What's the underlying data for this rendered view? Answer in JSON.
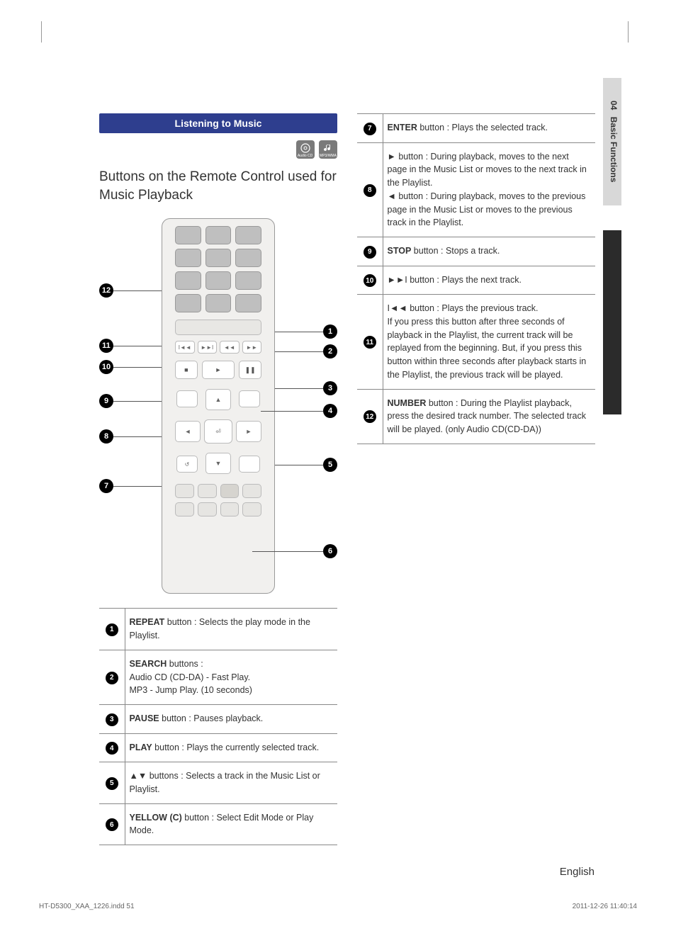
{
  "sideTab": {
    "chapter": "04",
    "title": "Basic Functions"
  },
  "sectionBar": "Listening to Music",
  "mediaIcons": [
    {
      "name": "audio-cd-icon",
      "label": "Audio CD"
    },
    {
      "name": "mp3-icon",
      "label": "MP3/WMA"
    }
  ],
  "heading": "Buttons on the Remote Control used for Music Playback",
  "footer": {
    "lang": "English"
  },
  "printLine": {
    "file": "HT-D5300_XAA_1226.indd   51",
    "date": "2011-12-26   11:40:14"
  },
  "callouts": [
    "1",
    "2",
    "3",
    "4",
    "5",
    "6",
    "7",
    "8",
    "9",
    "10",
    "11",
    "12"
  ],
  "tableLeft": [
    {
      "n": "1",
      "bold": "REPEAT",
      "rest": " button : Selects the play mode in the Playlist."
    },
    {
      "n": "2",
      "bold": "SEARCH",
      "rest": " buttons :\nAudio CD (CD-DA) - Fast Play.\nMP3 - Jump Play. (10 seconds)"
    },
    {
      "n": "3",
      "bold": "PAUSE",
      "rest": " button : Pauses playback."
    },
    {
      "n": "4",
      "bold": "PLAY",
      "rest": " button : Plays the currently selected track."
    },
    {
      "n": "5",
      "bold": "▲▼",
      "rest": " buttons : Selects a track in the Music List or Playlist."
    },
    {
      "n": "6",
      "bold": "YELLOW (C)",
      "rest": " button : Select Edit Mode or Play Mode."
    }
  ],
  "tableRight": [
    {
      "n": "7",
      "bold": "ENTER",
      "rest": " button : Plays the selected track."
    },
    {
      "n": "8",
      "bold": "",
      "rest": "► button : During playback, moves to the next page in the Music List or moves to the next track in the Playlist.\n◄ button : During playback, moves to the previous page in the Music List or moves to the previous track in the Playlist."
    },
    {
      "n": "9",
      "bold": "STOP",
      "rest": " button : Stops a track."
    },
    {
      "n": "10",
      "bold": "",
      "rest": "►►I button : Plays the next track."
    },
    {
      "n": "11",
      "bold": "",
      "rest": "I◄◄ button : Plays the previous track.\nIf you press this button after three seconds of playback in the Playlist, the current track will be replayed from the beginning. But, if you press this button within three seconds after playback starts in the Playlist, the previous track will be played."
    },
    {
      "n": "12",
      "bold": "NUMBER",
      "rest": " button : During the Playlist playback, press the desired track number. The selected track will be played. (only Audio CD(CD-DA))"
    }
  ],
  "colors": {
    "sectionBar": "#2e3e8e",
    "sideTab": "#d8d8d8",
    "sideBlack": "#2b2b2b",
    "border": "#888888",
    "text": "#333333"
  }
}
